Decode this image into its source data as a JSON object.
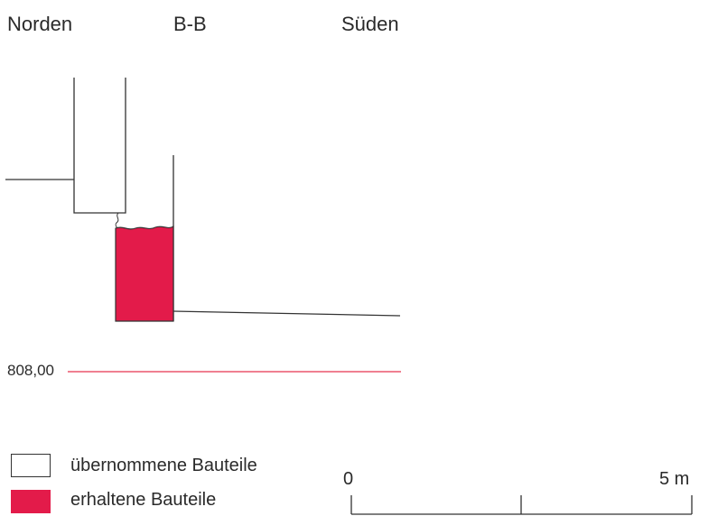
{
  "header": {
    "north": "Norden",
    "section": "B-B",
    "south": "Süden"
  },
  "elevation": {
    "label": "808,00",
    "color": "#e8354f"
  },
  "legend": {
    "items": [
      {
        "label": "übernommene Bauteile",
        "fill": "#ffffff"
      },
      {
        "label": "erhaltene Bauteile",
        "fill": "#e31b4a"
      }
    ]
  },
  "scale": {
    "start": "0",
    "end": "5 m"
  },
  "colors": {
    "line": "#333333",
    "preserved": "#e31b4a",
    "datum": "#e8354f"
  }
}
